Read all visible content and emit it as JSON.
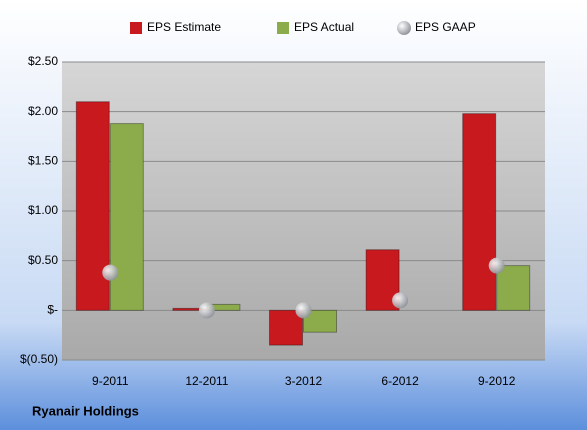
{
  "chart_data": {
    "type": "bar",
    "title": "Ryanair Holdings",
    "categories": [
      "9-2011",
      "12-2011",
      "3-2012",
      "6-2012",
      "9-2012"
    ],
    "series": [
      {
        "name": "EPS Estimate",
        "color": "#c8191e",
        "values": [
          2.1,
          0.02,
          -0.35,
          0.61,
          1.98
        ]
      },
      {
        "name": "EPS Actual",
        "color": "#8cac4c",
        "values": [
          1.88,
          0.06,
          -0.22,
          null,
          0.45
        ]
      },
      {
        "name": "EPS GAAP",
        "color": "#a8aab0",
        "type": "scatter",
        "marker": "circle",
        "values": [
          0.38,
          0.0,
          0.0,
          0.1,
          0.45
        ]
      }
    ],
    "ylim": [
      -0.5,
      2.5
    ],
    "yticks": [
      {
        "value": -0.5,
        "label": "$(0.50)"
      },
      {
        "value": 0,
        "label": "$-"
      },
      {
        "value": 0.5,
        "label": "$0.50"
      },
      {
        "value": 1,
        "label": "$1.00"
      },
      {
        "value": 1.5,
        "label": "$1.50"
      },
      {
        "value": 2,
        "label": "$2.00"
      },
      {
        "value": 2.5,
        "label": "$2.50"
      }
    ],
    "grid": true,
    "legend": "top"
  }
}
